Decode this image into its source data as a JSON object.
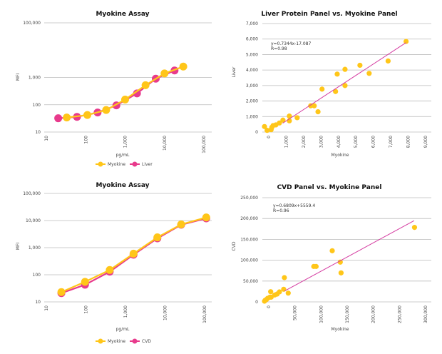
{
  "colors": {
    "myokine": "#FFC619",
    "pink": "#E83A8C",
    "trend": "#D43AA0",
    "grid": "#BBBBBB"
  },
  "chart_data": [
    {
      "type": "line",
      "title": "Myokine Assay",
      "xlabel": "pg/mL",
      "ylabel": "MFI",
      "xscale": "log",
      "yscale": "log",
      "xlim": [
        10,
        100000
      ],
      "ylim": [
        10,
        100000
      ],
      "xticks": [
        "10",
        "100",
        "1,000",
        "10,000",
        "100,000"
      ],
      "yticks": [
        "10",
        "100",
        "1,000",
        "100,000"
      ],
      "grid": true,
      "legend": "bottom",
      "series": [
        {
          "name": "Myokine",
          "color": "#FFC619",
          "x": [
            33,
            110,
            330,
            1000,
            3300,
            10000,
            30000
          ],
          "y": [
            34,
            42,
            64,
            155,
            520,
            1400,
            2500
          ]
        },
        {
          "name": "Liver",
          "color": "#E83A8C",
          "x": [
            20,
            60,
            200,
            600,
            2000,
            6000,
            18000
          ],
          "y": [
            32,
            36,
            52,
            95,
            260,
            900,
            1800
          ]
        }
      ]
    },
    {
      "type": "scatter",
      "title": "Liver Protein Panel vs. Myokine Panel",
      "xlabel": "Myokine",
      "ylabel": "Liver",
      "xlim": [
        0,
        9000
      ],
      "ylim": [
        0,
        7000
      ],
      "xticks": [
        "0",
        "1,000",
        "2,000",
        "3,000",
        "4,000",
        "5,000",
        "6,000",
        "7,000",
        "8,000",
        "9,000"
      ],
      "yticks": [
        "0",
        "1,000",
        "2,000",
        "3,000",
        "4,000",
        "5,000",
        "6,000",
        "7,000"
      ],
      "grid": true,
      "annotation": [
        "y=0.7344x-17.087",
        "R=0.98"
      ],
      "trendline": {
        "slope": 0.7344,
        "intercept": -17.087,
        "x": [
          800,
          7880
        ]
      },
      "points": [
        [
          -245,
          354
        ],
        [
          -95,
          108
        ],
        [
          136,
          154
        ],
        [
          177,
          308
        ],
        [
          245,
          415
        ],
        [
          408,
          462
        ],
        [
          611,
          585
        ],
        [
          815,
          770
        ],
        [
          1182,
          1031
        ],
        [
          1182,
          723
        ],
        [
          1630,
          923
        ],
        [
          2405,
          1692
        ],
        [
          2609,
          1692
        ],
        [
          2826,
          1308
        ],
        [
          3057,
          2769
        ],
        [
          3832,
          2615
        ],
        [
          3927,
          3738
        ],
        [
          4375,
          4046
        ],
        [
          4375,
          3000
        ],
        [
          5231,
          4308
        ],
        [
          5761,
          3785
        ],
        [
          6848,
          4585
        ],
        [
          7880,
          5846
        ]
      ]
    },
    {
      "type": "line",
      "title": "Myokine Assay",
      "xlabel": "pg/mL",
      "ylabel": "MFI",
      "xscale": "log",
      "yscale": "log",
      "xlim": [
        10,
        100000
      ],
      "ylim": [
        10,
        100000
      ],
      "xticks": [
        "10",
        "100",
        "1,000",
        "10,000",
        "100,000"
      ],
      "yticks": [
        "10",
        "100",
        "1,000",
        "10,000",
        "100,000"
      ],
      "grid": true,
      "legend": "bottom",
      "series": [
        {
          "name": "Myokine",
          "color": "#FFC619",
          "x": [
            24,
            95,
            400,
            1600,
            6400,
            25600,
            110000
          ],
          "y": [
            23,
            55,
            150,
            600,
            2400,
            7200,
            13000
          ]
        },
        {
          "name": "CVD",
          "color": "#E83A8C",
          "x": [
            24,
            95,
            400,
            1600,
            6400,
            25600,
            110000
          ],
          "y": [
            21,
            43,
            130,
            550,
            2200,
            7000,
            12000
          ]
        }
      ]
    },
    {
      "type": "scatter",
      "title": "CVD Panel vs. Myokine Panel",
      "xlabel": "Myokine",
      "ylabel": "CVD",
      "xlim": [
        0,
        300000
      ],
      "ylim": [
        0,
        250000
      ],
      "xticks": [
        "0",
        "50,000",
        "100,000",
        "150,000",
        "200,000",
        "250,000",
        "300,000"
      ],
      "yticks": [
        "0",
        "50,000",
        "100,000",
        "150,000",
        "200,000",
        "250,000"
      ],
      "grid": true,
      "annotation": [
        "y=0.6809x+5559.4",
        "R=0.96"
      ],
      "trendline": {
        "slope": 0.6809,
        "intercept": 5559.4,
        "x": [
          30000,
          278000
        ]
      },
      "points": [
        [
          -8160,
          1700
        ],
        [
          -6800,
          4000
        ],
        [
          -4500,
          5700
        ],
        [
          -2270,
          8560
        ],
        [
          2270,
          11400
        ],
        [
          4530,
          11400
        ],
        [
          3630,
          24540
        ],
        [
          11300,
          16550
        ],
        [
          15900,
          18800
        ],
        [
          20400,
          24000
        ],
        [
          28560,
          30250
        ],
        [
          29900,
          58200
        ],
        [
          37200,
          21100
        ],
        [
          86100,
          85000
        ],
        [
          90600,
          85000
        ],
        [
          121400,
          122700
        ],
        [
          136800,
          95400
        ],
        [
          138300,
          69600
        ],
        [
          278800,
          178700
        ]
      ]
    }
  ]
}
